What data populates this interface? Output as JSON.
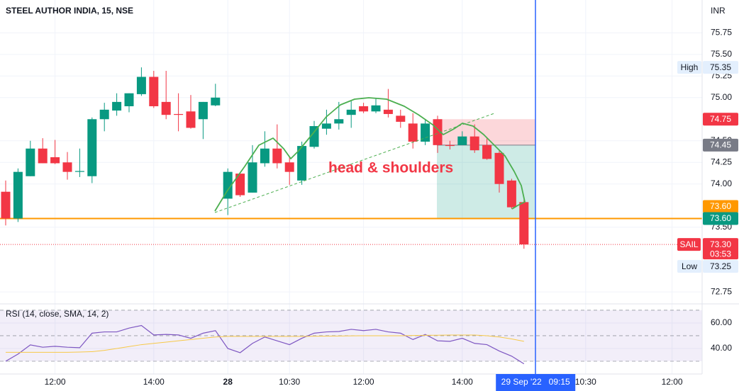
{
  "chart_data": [
    {
      "type": "candlestick",
      "title": "STEEL AUTHOR INDIA, 15, NSE",
      "currency": "INR",
      "annotation": "head & shoulders",
      "up_color": "#089981",
      "down_color": "#f23645",
      "grid": true,
      "categories": [
        null,
        null,
        null,
        null,
        "12:00",
        null,
        null,
        null,
        null,
        null,
        null,
        null,
        "14:00",
        null,
        null,
        null,
        null,
        null,
        "28",
        null,
        null,
        null,
        null,
        "10:30",
        null,
        null,
        null,
        null,
        null,
        "12:00",
        null,
        null,
        null,
        null,
        null,
        null,
        null,
        "14:00",
        null,
        null,
        null,
        null,
        null,
        "29 Sep '22   09:15",
        null,
        null,
        null,
        "10:30",
        null,
        null,
        null,
        null,
        null,
        null,
        "12:00"
      ],
      "open": [
        73.91,
        73.6,
        74.09,
        74.41,
        74.31,
        74.25,
        74.14,
        74.09,
        74.75,
        74.85,
        74.9,
        75.04,
        75.24,
        74.95,
        74.81,
        74.84,
        74.75,
        74.91,
        73.83,
        74.12,
        73.9,
        74.24,
        74.41,
        74.25,
        74.04,
        74.43,
        74.64,
        74.7,
        74.8,
        74.9,
        74.84,
        74.86,
        74.79,
        74.7,
        74.49,
        74.75,
        74.45,
        74.45,
        74.55,
        74.45,
        74.36,
        74.04,
        73.79,
        null,
        null,
        null,
        null,
        null,
        null,
        null,
        null,
        null,
        null,
        null,
        null
      ],
      "high": [
        74.04,
        74.18,
        74.5,
        74.53,
        74.51,
        74.37,
        74.41,
        74.77,
        74.94,
        75.05,
        75.05,
        75.35,
        75.31,
        75.31,
        75.05,
        75.03,
        74.95,
        75.16,
        74.18,
        74.12,
        74.45,
        74.61,
        74.69,
        74.32,
        74.49,
        74.73,
        74.86,
        74.95,
        74.96,
        74.94,
        74.99,
        75.1,
        74.86,
        74.82,
        74.75,
        74.79,
        74.5,
        74.61,
        74.69,
        74.53,
        74.39,
        74.06,
        73.82,
        null,
        null,
        null,
        null,
        null,
        null,
        null,
        null,
        null,
        null,
        null,
        null
      ],
      "low": [
        73.52,
        73.56,
        74.09,
        74.24,
        74.23,
        74.05,
        74.08,
        74.01,
        74.61,
        74.79,
        74.83,
        75.02,
        74.88,
        74.75,
        74.61,
        74.64,
        74.52,
        74.9,
        73.64,
        73.85,
        73.9,
        74.2,
        74.18,
        73.99,
        73.99,
        74.41,
        74.57,
        74.63,
        74.65,
        74.82,
        74.82,
        74.77,
        74.65,
        74.41,
        74.45,
        74.36,
        74.4,
        74.45,
        74.36,
        74.28,
        73.9,
        73.71,
        73.25,
        null,
        null,
        null,
        null,
        null,
        null,
        null,
        null,
        null,
        null,
        null,
        null
      ],
      "close": [
        73.6,
        74.14,
        74.41,
        74.24,
        74.24,
        74.14,
        74.15,
        74.75,
        74.86,
        74.95,
        75.05,
        75.24,
        74.9,
        74.8,
        74.8,
        74.65,
        74.95,
        75.0,
        74.14,
        73.87,
        74.25,
        74.41,
        74.24,
        74.14,
        74.44,
        74.67,
        74.7,
        74.75,
        74.86,
        74.84,
        74.91,
        74.81,
        74.72,
        74.49,
        74.7,
        74.45,
        74.44,
        74.55,
        74.39,
        74.29,
        74.0,
        73.73,
        73.3,
        null,
        null,
        null,
        null,
        null,
        null,
        null,
        null,
        null,
        null,
        null,
        null
      ],
      "ylim": [
        72.62,
        76.13
      ],
      "yticks": [
        72.75,
        {
          "value": 73.5,
          "label": "73.50"
        },
        {
          "value": 74,
          "label": "74.00"
        },
        74.25,
        {
          "value": 74.5,
          "label": "74.50"
        },
        {
          "value": 75,
          "label": "75.00"
        },
        75.25,
        {
          "value": 75.5,
          "label": "75.50"
        },
        75.75
      ],
      "hline": {
        "value": 73.6,
        "label": "73.60",
        "color": "#ff9800"
      },
      "position": {
        "stop": 74.75,
        "entry": 74.45,
        "target": {
          "value": 73.6,
          "label": "73.60"
        }
      },
      "last_price": {
        "symbol": "SAIL",
        "value": 73.3,
        "value_label": "73.30",
        "countdown": "03:53"
      },
      "high_marker": {
        "label": "High",
        "value": 75.35
      },
      "low_marker": {
        "label": "Low",
        "value": 73.25
      }
    },
    {
      "type": "line",
      "title": "RSI (14, close, SMA, 14, 2)",
      "series": [
        {
          "name": "RSI",
          "color": "#7e57c2",
          "values": [
            30,
            35.6,
            42.8,
            41,
            41.7,
            41,
            40.6,
            52,
            53,
            53,
            56,
            58,
            50.6,
            51,
            50.6,
            48,
            52,
            54,
            40,
            36.7,
            44,
            49,
            46,
            43,
            48,
            52,
            53,
            53.3,
            55,
            54,
            55,
            53,
            52,
            47,
            51,
            46,
            45.6,
            48,
            44,
            43,
            38,
            34,
            28,
            null,
            null,
            null,
            null,
            null,
            null,
            null,
            null,
            null,
            null,
            null,
            null
          ]
        },
        {
          "name": "SMA",
          "color": "#f7c948",
          "values": [
            37,
            37,
            37,
            37,
            37,
            37,
            37.2,
            37.5,
            38.5,
            40,
            41.5,
            43,
            44,
            45,
            46,
            47,
            48,
            49,
            49.5,
            49.5,
            49.5,
            49.5,
            49.5,
            49.5,
            49.5,
            49.6,
            49.7,
            49.8,
            49.9,
            50,
            50,
            50,
            50,
            50.2,
            50.3,
            50.4,
            50.5,
            50.5,
            50.5,
            50,
            49,
            47.5,
            45.6,
            null,
            null,
            null,
            null,
            null,
            null,
            null,
            null,
            null,
            null,
            null,
            null
          ]
        }
      ],
      "levels": [
        70,
        50,
        30
      ],
      "ylim": [
        20,
        74.4
      ],
      "yticks": [
        {
          "value": 60,
          "label": "60.00"
        },
        {
          "value": 40,
          "label": "40.00"
        }
      ]
    }
  ]
}
